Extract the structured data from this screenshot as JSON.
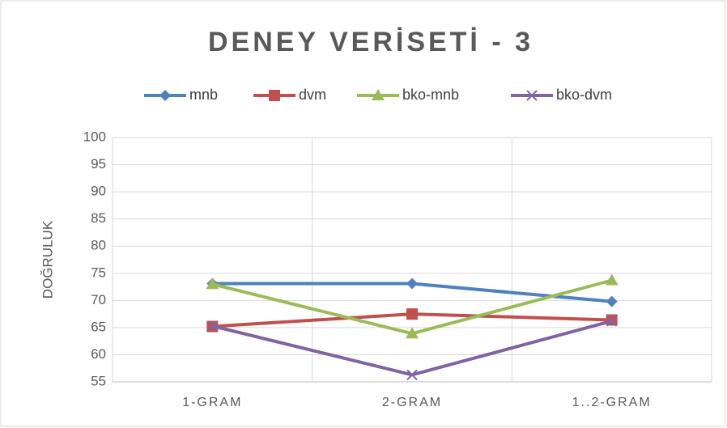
{
  "chart_data": {
    "type": "line",
    "title": "DENEY VERİSETİ - 3",
    "y_label": "DOĞRULUK",
    "categories": [
      "1-GRAM",
      "2-GRAM",
      "1..2-GRAM"
    ],
    "series": [
      {
        "name": "mnb",
        "color": "#4f81bd",
        "marker": "diamond",
        "values": [
          73.1,
          73.1,
          69.8
        ]
      },
      {
        "name": "dvm",
        "color": "#c0504d",
        "marker": "square",
        "values": [
          65.2,
          67.5,
          66.4
        ]
      },
      {
        "name": "bko-mnb",
        "color": "#9bbb59",
        "marker": "triangle",
        "values": [
          73.0,
          63.9,
          73.7
        ]
      },
      {
        "name": "bko-dvm",
        "color": "#8064a2",
        "marker": "x",
        "values": [
          65.3,
          56.3,
          66.2
        ]
      }
    ],
    "ylim": [
      55,
      100
    ],
    "yticks": [
      55,
      60,
      65,
      70,
      75,
      80,
      85,
      90,
      95,
      100
    ],
    "grid": true,
    "legend": "top"
  }
}
